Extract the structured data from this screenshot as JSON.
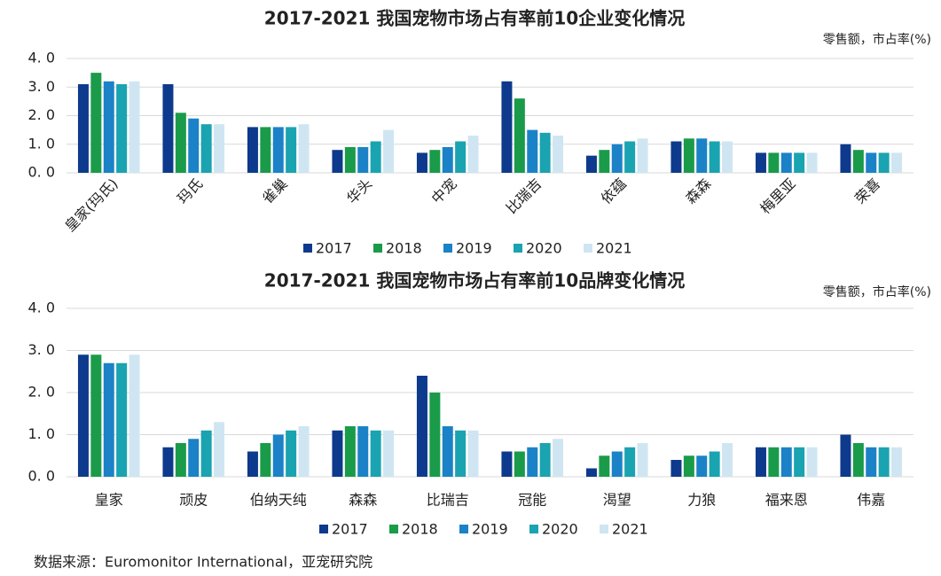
{
  "chart_data": [
    {
      "type": "bar",
      "title": "2017-2021 我国宠物市场占有率前10企业变化情况",
      "y_unit": "零售额，市占率(%)",
      "categories": [
        "皇家(玛氏)",
        "玛氏",
        "雀巢",
        "华头",
        "中宠",
        "比瑞吉",
        "依蕴",
        "森森",
        "梅里亚",
        "荣喜"
      ],
      "series": [
        {
          "name": "2017",
          "color": "#0d3a8c",
          "values": [
            3.1,
            3.1,
            1.6,
            0.8,
            0.7,
            3.2,
            0.6,
            1.1,
            0.7,
            1.0
          ]
        },
        {
          "name": "2018",
          "color": "#1a9b4a",
          "values": [
            3.5,
            2.1,
            1.6,
            0.9,
            0.8,
            2.6,
            0.8,
            1.2,
            0.7,
            0.8
          ]
        },
        {
          "name": "2019",
          "color": "#1b82c7",
          "values": [
            3.2,
            1.9,
            1.6,
            0.9,
            0.9,
            1.5,
            1.0,
            1.2,
            0.7,
            0.7
          ]
        },
        {
          "name": "2020",
          "color": "#1aa3b0",
          "values": [
            3.1,
            1.7,
            1.6,
            1.1,
            1.1,
            1.4,
            1.1,
            1.1,
            0.7,
            0.7
          ]
        },
        {
          "name": "2021",
          "color": "#cfe6f2",
          "values": [
            3.2,
            1.7,
            1.7,
            1.5,
            1.3,
            1.3,
            1.2,
            1.1,
            0.7,
            0.7
          ]
        }
      ],
      "ylim": [
        0,
        4
      ],
      "yticks": [
        {
          "value": 0,
          "label": "0. 0"
        },
        {
          "value": 1,
          "label": "1. 0"
        },
        {
          "value": 2,
          "label": "2. 0"
        },
        {
          "value": 3,
          "label": "3. 0"
        },
        {
          "value": 4,
          "label": "4. 0"
        }
      ],
      "grid": true,
      "legend": "bottom"
    },
    {
      "type": "bar",
      "title": "2017-2021 我国宠物市场占有率前10品牌变化情况",
      "y_unit": "零售额，市占率(%)",
      "categories": [
        "皇家",
        "顽皮",
        "伯纳天纯",
        "森森",
        "比瑞吉",
        "冠能",
        "渴望",
        "力狼",
        "福来恩",
        "伟嘉"
      ],
      "series": [
        {
          "name": "2017",
          "color": "#0d3a8c",
          "values": [
            2.9,
            0.7,
            0.6,
            1.1,
            2.4,
            0.6,
            0.2,
            0.4,
            0.7,
            1.0
          ]
        },
        {
          "name": "2018",
          "color": "#1a9b4a",
          "values": [
            2.9,
            0.8,
            0.8,
            1.2,
            2.0,
            0.6,
            0.5,
            0.5,
            0.7,
            0.8
          ]
        },
        {
          "name": "2019",
          "color": "#1b82c7",
          "values": [
            2.7,
            0.9,
            1.0,
            1.2,
            1.2,
            0.7,
            0.6,
            0.5,
            0.7,
            0.7
          ]
        },
        {
          "name": "2020",
          "color": "#1aa3b0",
          "values": [
            2.7,
            1.1,
            1.1,
            1.1,
            1.1,
            0.8,
            0.7,
            0.6,
            0.7,
            0.7
          ]
        },
        {
          "name": "2021",
          "color": "#cfe6f2",
          "values": [
            2.9,
            1.3,
            1.2,
            1.1,
            1.1,
            0.9,
            0.8,
            0.8,
            0.7,
            0.7
          ]
        }
      ],
      "ylim": [
        0,
        4
      ],
      "yticks": [
        {
          "value": 0,
          "label": "0. 0"
        },
        {
          "value": 1,
          "label": "1. 0"
        },
        {
          "value": 2,
          "label": "2. 0"
        },
        {
          "value": 3,
          "label": "3. 0"
        },
        {
          "value": 4,
          "label": "4. 0"
        }
      ],
      "grid": true,
      "legend": "bottom"
    }
  ],
  "source": "数据来源：Euromonitor International，亚宠研究院"
}
